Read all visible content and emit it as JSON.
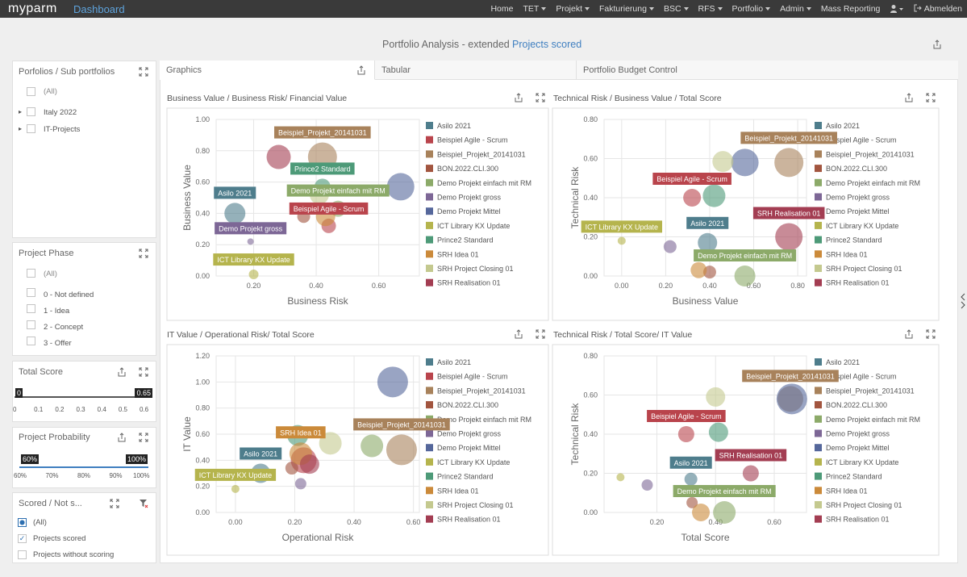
{
  "nav": {
    "brand": "myparm",
    "section": "Dashboard",
    "menu": [
      {
        "label": "Home"
      },
      {
        "label": "TET",
        "dropdown": true
      },
      {
        "label": "Projekt",
        "dropdown": true
      },
      {
        "label": "Fakturierung",
        "dropdown": true
      },
      {
        "label": "BSC",
        "dropdown": true
      },
      {
        "label": "RFS",
        "dropdown": true
      },
      {
        "label": "Portfolio",
        "dropdown": true
      },
      {
        "label": "Admin",
        "dropdown": true
      },
      {
        "label": "Mass Reporting"
      }
    ],
    "logout": "Abmelden"
  },
  "header": {
    "title": "Portfolio Analysis - extended",
    "subtitle": "Projects scored"
  },
  "filters": {
    "portfolios": {
      "title": "Porfolios / Sub portfolios",
      "items": [
        "(All)",
        "Italy 2022",
        "IT-Projects"
      ]
    },
    "phase": {
      "title": "Project Phase",
      "items": [
        "(All)",
        "0 - Not defined",
        "1 - Idea",
        "2 - Concept",
        "3 - Offer"
      ]
    },
    "total_score": {
      "title": "Total Score",
      "range": [
        0,
        0.65
      ],
      "ticks": [
        0,
        0.1,
        0.2,
        0.3,
        0.4,
        0.5,
        0.6
      ]
    },
    "probability": {
      "title": "Project Probability",
      "range": [
        "60%",
        "100%"
      ],
      "ticks": [
        "60%",
        "70%",
        "80%",
        "90%",
        "100%"
      ]
    },
    "scored": {
      "title": "Scored / Not s...",
      "items": [
        "(All)",
        "Projects scored",
        "Projects without scoring"
      ]
    }
  },
  "tabs": [
    "Graphics",
    "Tabular",
    "Portfolio Budget Control"
  ],
  "chart_data": [
    {
      "type": "bubble",
      "title": "Business Value / Business Risk/ Financial Value",
      "x_label": "Business Risk",
      "y_label": "Business Value",
      "xlim": [
        0.08,
        0.73
      ],
      "ylim": [
        0,
        1
      ],
      "xticks": [
        {
          "value": 0.2,
          "label": "0.20"
        },
        {
          "value": 0.4,
          "label": "0.40"
        },
        {
          "value": 0.6,
          "label": "0.60"
        }
      ],
      "yticks": [
        {
          "value": 0,
          "label": "0.00"
        },
        {
          "value": 0.2,
          "label": "0.20"
        },
        {
          "value": 0.4,
          "label": "0.40"
        },
        {
          "value": 0.6,
          "label": "0.60"
        },
        {
          "value": 0.8,
          "label": "0.80"
        },
        {
          "value": 1,
          "label": "1.00"
        }
      ],
      "series": [
        {
          "name": "Asilo 2021",
          "color": "#4e7d8c",
          "x": [
            0.14
          ],
          "values": [
            0.4
          ],
          "sizes": [
            0.65
          ],
          "labeled": true
        },
        {
          "name": "Beispiel Agile - Scrum",
          "color": "#b9444c",
          "x": [
            0.44
          ],
          "values": [
            0.32
          ],
          "sizes": [
            0.45
          ],
          "labeled": true
        },
        {
          "name": "Beispiel_Projekt_20141031",
          "color": "#a8825b",
          "x": [
            0.42
          ],
          "values": [
            0.76
          ],
          "sizes": [
            0.9
          ],
          "labeled": true
        },
        {
          "name": "BON.2022.CLI.300",
          "color": "#a2553f",
          "x": [
            0.36
          ],
          "values": [
            0.38
          ],
          "sizes": [
            0.4
          ]
        },
        {
          "name": "Demo Projekt einfach mit RM",
          "color": "#8caa69",
          "x": [
            0.47
          ],
          "values": [
            0.43
          ],
          "sizes": [
            0.5
          ],
          "labeled": true
        },
        {
          "name": "Demo Projekt gross",
          "color": "#7d6796",
          "x": [
            0.19
          ],
          "values": [
            0.22
          ],
          "sizes": [
            0.2
          ],
          "labeled": true
        },
        {
          "name": "Demo Projekt Mittel",
          "color": "#55679b",
          "x": [
            0.67
          ],
          "values": [
            0.57
          ],
          "sizes": [
            0.85
          ]
        },
        {
          "name": "ICT Library KX Update",
          "color": "#b5b44d",
          "x": [
            0.2
          ],
          "values": [
            0.01
          ],
          "sizes": [
            0.3
          ],
          "labeled": true
        },
        {
          "name": "Prince2 Standard",
          "color": "#4d9a78",
          "x": [
            0.42
          ],
          "values": [
            0.57
          ],
          "sizes": [
            0.5
          ],
          "labeled": true
        },
        {
          "name": "SRH Idea 01",
          "color": "#cb8a3a",
          "x": [
            0.43
          ],
          "values": [
            0.38
          ],
          "sizes": [
            0.6
          ]
        },
        {
          "name": "SRH Project Closing 01",
          "color": "#c4c98f",
          "x": [
            0.41
          ],
          "values": [
            0.52
          ],
          "sizes": [
            0.6
          ]
        },
        {
          "name": "SRH Realisation 01",
          "color": "#a33d52",
          "x": [
            0.28
          ],
          "values": [
            0.76
          ],
          "sizes": [
            0.75
          ]
        }
      ]
    },
    {
      "type": "bubble",
      "title": "Technical Risk / Business Value / Total Score",
      "x_label": "Business Value",
      "y_label": "Technical Risk",
      "xlim": [
        -0.08,
        0.84
      ],
      "ylim": [
        0,
        0.8
      ],
      "xticks": [
        {
          "value": 0,
          "label": "0.00"
        },
        {
          "value": 0.2,
          "label": "0.20"
        },
        {
          "value": 0.4,
          "label": "0.40"
        },
        {
          "value": 0.6,
          "label": "0.60"
        },
        {
          "value": 0.8,
          "label": "0.80"
        }
      ],
      "yticks": [
        {
          "value": 0,
          "label": "0.00"
        },
        {
          "value": 0.2,
          "label": "0.20"
        },
        {
          "value": 0.4,
          "label": "0.40"
        },
        {
          "value": 0.6,
          "label": "0.60"
        },
        {
          "value": 0.8,
          "label": "0.80"
        }
      ],
      "series": [
        {
          "name": "Asilo 2021",
          "color": "#4e7d8c",
          "x": [
            0.39
          ],
          "values": [
            0.17
          ],
          "sizes": [
            0.6
          ],
          "labeled": true
        },
        {
          "name": "Beispiel Agile - Scrum",
          "color": "#b9444c",
          "x": [
            0.32
          ],
          "values": [
            0.4
          ],
          "sizes": [
            0.55
          ],
          "labeled": true
        },
        {
          "name": "Beispiel_Projekt_20141031",
          "color": "#a8825b",
          "x": [
            0.76
          ],
          "values": [
            0.58
          ],
          "sizes": [
            0.9
          ],
          "labeled": true
        },
        {
          "name": "BON.2022.CLI.300",
          "color": "#a2553f",
          "x": [
            0.4
          ],
          "values": [
            0.02
          ],
          "sizes": [
            0.4
          ]
        },
        {
          "name": "Demo Projekt einfach mit RM",
          "color": "#8caa69",
          "x": [
            0.56
          ],
          "values": [
            0
          ],
          "sizes": [
            0.65
          ],
          "labeled": true
        },
        {
          "name": "Demo Projekt gross",
          "color": "#7d6796",
          "x": [
            0.22
          ],
          "values": [
            0.15
          ],
          "sizes": [
            0.4
          ]
        },
        {
          "name": "Demo Projekt Mittel",
          "color": "#55679b",
          "x": [
            0.56
          ],
          "values": [
            0.58
          ],
          "sizes": [
            0.85
          ]
        },
        {
          "name": "ICT Library KX Update",
          "color": "#b5b44d",
          "x": [
            0
          ],
          "values": [
            0.18
          ],
          "sizes": [
            0.25
          ],
          "labeled": true
        },
        {
          "name": "Prince2 Standard",
          "color": "#4d9a78",
          "x": [
            0.42
          ],
          "values": [
            0.41
          ],
          "sizes": [
            0.7
          ]
        },
        {
          "name": "SRH Idea 01",
          "color": "#cb8a3a",
          "x": [
            0.35
          ],
          "values": [
            0.03
          ],
          "sizes": [
            0.5
          ]
        },
        {
          "name": "SRH Project Closing 01",
          "color": "#c4c98f",
          "x": [
            0.46
          ],
          "values": [
            0.585
          ],
          "sizes": [
            0.65
          ]
        },
        {
          "name": "SRH Realisation 01",
          "color": "#a33d52",
          "x": [
            0.76
          ],
          "values": [
            0.2
          ],
          "sizes": [
            0.85
          ],
          "labeled": true
        }
      ]
    },
    {
      "type": "bubble",
      "title": "IT Value / Operational Risk/ Total Score",
      "x_label": "Operational Risk",
      "y_label": "IT Value",
      "xlim": [
        -0.065,
        0.62
      ],
      "ylim": [
        0,
        1.2
      ],
      "xticks": [
        {
          "value": 0,
          "label": "0.00"
        },
        {
          "value": 0.2,
          "label": "0.20"
        },
        {
          "value": 0.4,
          "label": "0.40"
        },
        {
          "value": 0.6,
          "label": "0.60"
        }
      ],
      "yticks": [
        {
          "value": 0,
          "label": "0.00"
        },
        {
          "value": 0.2,
          "label": "0.20"
        },
        {
          "value": 0.4,
          "label": "0.40"
        },
        {
          "value": 0.6,
          "label": "0.60"
        },
        {
          "value": 0.8,
          "label": "0.80"
        },
        {
          "value": 1,
          "label": "1.00"
        },
        {
          "value": 1.2,
          "label": "1.20"
        }
      ],
      "series": [
        {
          "name": "Asilo 2021",
          "color": "#4e7d8c",
          "x": [
            0.085
          ],
          "values": [
            0.3
          ],
          "sizes": [
            0.6
          ],
          "labeled": true
        },
        {
          "name": "Beispiel Agile - Scrum",
          "color": "#b9444c",
          "x": [
            0.23
          ],
          "values": [
            0.4
          ],
          "sizes": [
            0.8
          ]
        },
        {
          "name": "Beispiel_Projekt_20141031",
          "color": "#a8825b",
          "x": [
            0.56
          ],
          "values": [
            0.48
          ],
          "sizes": [
            0.95
          ],
          "labeled": true
        },
        {
          "name": "BON.2022.CLI.300",
          "color": "#a2553f",
          "x": [
            0.19
          ],
          "values": [
            0.34
          ],
          "sizes": [
            0.4
          ]
        },
        {
          "name": "Demo Projekt einfach mit RM",
          "color": "#8caa69",
          "x": [
            0.46
          ],
          "values": [
            0.51
          ],
          "sizes": [
            0.7
          ]
        },
        {
          "name": "Demo Projekt gross",
          "color": "#7d6796",
          "x": [
            0.22
          ],
          "values": [
            0.22
          ],
          "sizes": [
            0.35
          ]
        },
        {
          "name": "Demo Projekt Mittel",
          "color": "#55679b",
          "x": [
            0.53
          ],
          "values": [
            1
          ],
          "sizes": [
            0.95
          ]
        },
        {
          "name": "ICT Library KX Update",
          "color": "#b5b44d",
          "x": [
            0
          ],
          "values": [
            0.18
          ],
          "sizes": [
            0.25
          ],
          "labeled": true
        },
        {
          "name": "Prince2 Standard",
          "color": "#4d9a78",
          "x": [
            0.21
          ],
          "values": [
            0.59
          ],
          "sizes": [
            0.65
          ]
        },
        {
          "name": "SRH Idea 01",
          "color": "#cb8a3a",
          "x": [
            0.22
          ],
          "values": [
            0.45
          ],
          "sizes": [
            0.7
          ],
          "labeled": true
        },
        {
          "name": "SRH Project Closing 01",
          "color": "#c4c98f",
          "x": [
            0.32
          ],
          "values": [
            0.53
          ],
          "sizes": [
            0.7
          ]
        },
        {
          "name": "SRH Realisation 01",
          "color": "#a33d52",
          "x": [
            0.25
          ],
          "values": [
            0.37
          ],
          "sizes": [
            0.6
          ]
        }
      ]
    },
    {
      "type": "bubble",
      "title": "Technical Risk / Total Score/ IT Value",
      "x_label": "Total Score",
      "y_label": "Technical Risk",
      "xlim": [
        0.02,
        0.71
      ],
      "ylim": [
        0,
        0.8
      ],
      "xticks": [
        {
          "value": 0.2,
          "label": "0.20"
        },
        {
          "value": 0.4,
          "label": "0.40"
        },
        {
          "value": 0.6,
          "label": "0.60"
        }
      ],
      "yticks": [
        {
          "value": 0,
          "label": "0.00"
        },
        {
          "value": 0.2,
          "label": "0.20"
        },
        {
          "value": 0.4,
          "label": "0.40"
        },
        {
          "value": 0.6,
          "label": "0.60"
        },
        {
          "value": 0.8,
          "label": "0.80"
        }
      ],
      "series": [
        {
          "name": "Asilo 2021",
          "color": "#4e7d8c",
          "x": [
            0.316
          ],
          "values": [
            0.17
          ],
          "sizes": [
            0.4
          ],
          "labeled": true
        },
        {
          "name": "Beispiel Agile - Scrum",
          "color": "#b9444c",
          "x": [
            0.3
          ],
          "values": [
            0.4
          ],
          "sizes": [
            0.5
          ],
          "labeled": true
        },
        {
          "name": "Beispiel_Projekt_20141031",
          "color": "#a8825b",
          "x": [
            0.655
          ],
          "values": [
            0.58
          ],
          "sizes": [
            0.8
          ],
          "labeled": true
        },
        {
          "name": "BON.2022.CLI.300",
          "color": "#a2553f",
          "x": [
            0.32
          ],
          "values": [
            0.05
          ],
          "sizes": [
            0.35
          ]
        },
        {
          "name": "Demo Projekt einfach mit RM",
          "color": "#8caa69",
          "x": [
            0.43
          ],
          "values": [
            0
          ],
          "sizes": [
            0.7
          ],
          "labeled": true
        },
        {
          "name": "Demo Projekt gross",
          "color": "#7d6796",
          "x": [
            0.167
          ],
          "values": [
            0.14
          ],
          "sizes": [
            0.35
          ]
        },
        {
          "name": "Demo Projekt Mittel",
          "color": "#55679b",
          "x": [
            0.66
          ],
          "values": [
            0.58
          ],
          "sizes": [
            0.95
          ]
        },
        {
          "name": "ICT Library KX Update",
          "color": "#b5b44d",
          "x": [
            0.076
          ],
          "values": [
            0.18
          ],
          "sizes": [
            0.25
          ]
        },
        {
          "name": "Prince2 Standard",
          "color": "#4d9a78",
          "x": [
            0.41
          ],
          "values": [
            0.41
          ],
          "sizes": [
            0.6
          ]
        },
        {
          "name": "SRH Idea 01",
          "color": "#cb8a3a",
          "x": [
            0.35
          ],
          "values": [
            0
          ],
          "sizes": [
            0.55
          ]
        },
        {
          "name": "SRH Project Closing 01",
          "color": "#c4c98f",
          "x": [
            0.4
          ],
          "values": [
            0.59
          ],
          "sizes": [
            0.6
          ]
        },
        {
          "name": "SRH Realisation 01",
          "color": "#a33d52",
          "x": [
            0.52
          ],
          "values": [
            0.2
          ],
          "sizes": [
            0.5
          ],
          "labeled": true
        }
      ]
    }
  ]
}
